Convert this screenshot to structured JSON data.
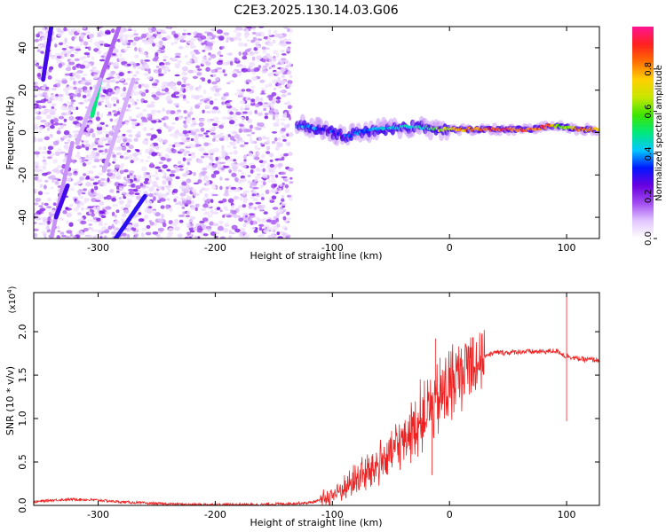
{
  "figure": {
    "title": "C2E3.2025.130.14.03.G06"
  },
  "chart_data": [
    {
      "type": "heatmap",
      "xlabel": "Height of straight line (km)",
      "ylabel": "Frequency (Hz)",
      "xlim": [
        -355,
        128
      ],
      "ylim": [
        -50,
        50
      ],
      "x_ticks": [
        -300,
        -200,
        -100,
        0,
        100
      ],
      "y_ticks": [
        -40,
        -20,
        0,
        20,
        40
      ],
      "colorbar": {
        "label": "Normalized spectral amplitude",
        "range": [
          0,
          1
        ],
        "ticks": [
          0.0,
          0.2,
          0.4,
          0.6,
          0.8
        ],
        "tick_labels": [
          "0.0",
          "0.2",
          "0.4",
          "0.6",
          "0.8"
        ],
        "colors": [
          "#ffffff",
          "#e2c7ff",
          "#a24cf0",
          "#6a00e0",
          "#0018ff",
          "#00c8ff",
          "#00e87a",
          "#3ee600",
          "#c8e600",
          "#ffd000",
          "#ff7000",
          "#ff2020",
          "#ff1493"
        ]
      },
      "noise_region_x": [
        -355,
        -135
      ],
      "streaks": [
        {
          "x": [
            -347,
            -340
          ],
          "y": [
            25,
            50
          ],
          "amplitude": 0.28
        },
        {
          "x": [
            -305,
            -298
          ],
          "y": [
            8,
            25
          ],
          "amplitude": 0.5
        },
        {
          "x": [
            -298,
            -282
          ],
          "y": [
            25,
            50
          ],
          "amplitude": 0.15
        },
        {
          "x": [
            -318,
            -298
          ],
          "y": [
            -5,
            25
          ],
          "amplitude": 0.1
        },
        {
          "x": [
            -340,
            -322
          ],
          "y": [
            -50,
            -5
          ],
          "amplitude": 0.12
        },
        {
          "x": [
            -336,
            -326
          ],
          "y": [
            -40,
            -25
          ],
          "amplitude": 0.28
        },
        {
          "x": [
            -285,
            -260
          ],
          "y": [
            -50,
            -30
          ],
          "amplitude": 0.3
        },
        {
          "x": [
            -295,
            -270
          ],
          "y": [
            -18,
            25
          ],
          "amplitude": 0.1
        }
      ],
      "signal_band": [
        {
          "x": -130,
          "freq": 3,
          "amplitude": 0.45
        },
        {
          "x": -110,
          "freq": 2,
          "amplitude": 0.4
        },
        {
          "x": -90,
          "freq": -2,
          "amplitude": 0.38
        },
        {
          "x": -70,
          "freq": 1,
          "amplitude": 0.45
        },
        {
          "x": -50,
          "freq": 2,
          "amplitude": 0.5
        },
        {
          "x": -30,
          "freq": 3,
          "amplitude": 0.5
        },
        {
          "x": -10,
          "freq": 1.5,
          "amplitude": 0.7
        },
        {
          "x": 10,
          "freq": 1.5,
          "amplitude": 0.85
        },
        {
          "x": 40,
          "freq": 1.5,
          "amplitude": 0.95
        },
        {
          "x": 70,
          "freq": 1.5,
          "amplitude": 0.93
        },
        {
          "x": 85,
          "freq": 3,
          "amplitude": 0.95
        },
        {
          "x": 95,
          "freq": 3,
          "amplitude": 0.6
        },
        {
          "x": 110,
          "freq": 1.5,
          "amplitude": 0.9
        },
        {
          "x": 128,
          "freq": 1.5,
          "amplitude": 0.85
        }
      ]
    },
    {
      "type": "line",
      "xlabel": "Height of straight line (km)",
      "ylabel": "SNR (10 * v/v)",
      "y_multiplier": "(x10",
      "y_multiplier_exponent": "4",
      "xlim": [
        -355,
        128
      ],
      "ylim": [
        0,
        2.45
      ],
      "x_ticks": [
        -300,
        -200,
        -100,
        0,
        100
      ],
      "y_ticks": [
        0.0,
        0.5,
        1.0,
        1.5,
        2.0
      ],
      "y_tick_labels": [
        "0.0",
        "0.5",
        "1.0",
        "1.5",
        "2.0"
      ],
      "series": [
        {
          "color": "#ee2222",
          "x": [
            -355,
            -340,
            -320,
            -300,
            -280,
            -250,
            -220,
            -200,
            -180,
            -160,
            -140,
            -120,
            -110,
            -100,
            -90,
            -80,
            -70,
            -60,
            -50,
            -40,
            -30,
            -20,
            -15,
            -10,
            -5,
            0,
            5,
            10,
            15,
            20,
            25,
            30,
            40,
            50,
            60,
            70,
            80,
            90,
            95,
            98,
            100,
            102,
            105,
            110,
            115,
            120,
            128
          ],
          "y": [
            0.04,
            0.06,
            0.07,
            0.06,
            0.04,
            0.02,
            0.01,
            0.01,
            0.01,
            0.01,
            0.02,
            0.03,
            0.06,
            0.12,
            0.2,
            0.3,
            0.38,
            0.48,
            0.6,
            0.75,
            0.9,
            1.05,
            1.15,
            1.2,
            1.28,
            1.38,
            1.45,
            1.55,
            1.6,
            1.65,
            1.7,
            1.73,
            1.76,
            1.76,
            1.77,
            1.77,
            1.77,
            1.78,
            1.76,
            1.72,
            1.72,
            1.72,
            1.7,
            1.69,
            1.68,
            1.68,
            1.67
          ],
          "spikes": [
            {
              "x": -12,
              "y": 1.92
            },
            {
              "x": -15,
              "y": 0.35
            },
            {
              "x": -8,
              "y": 1.7
            },
            {
              "x": -25,
              "y": 1.45
            },
            {
              "x": 100,
              "y": 2.45
            },
            {
              "x": 100,
              "y": 0.97
            }
          ]
        }
      ]
    }
  ]
}
